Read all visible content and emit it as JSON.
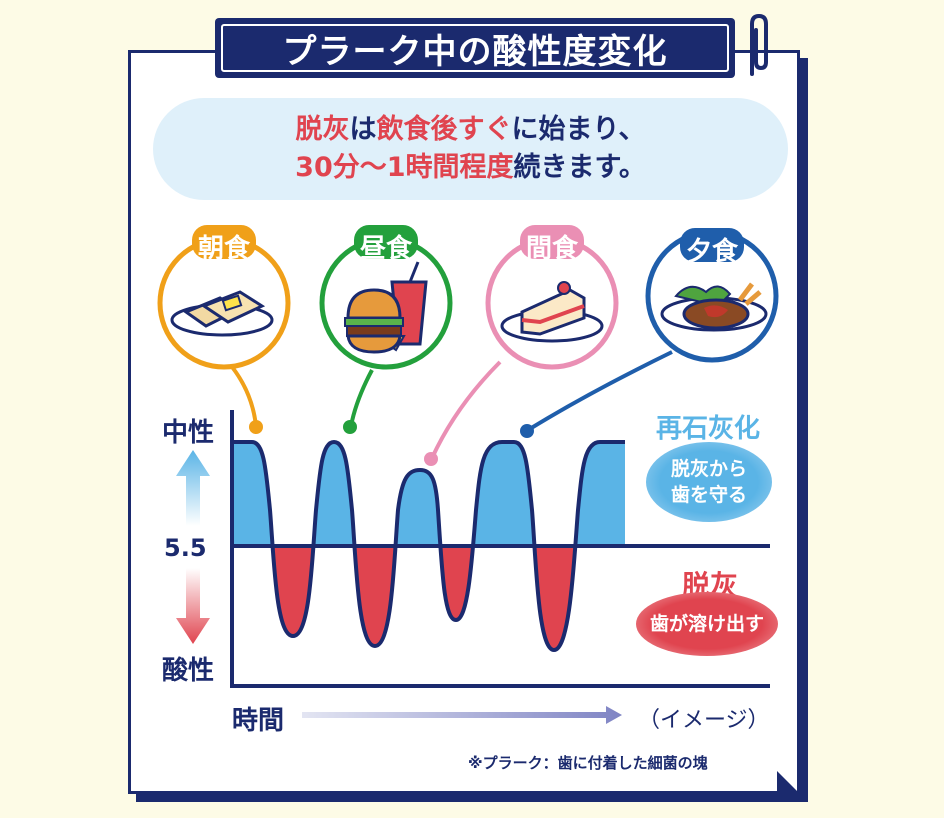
{
  "title": "プラーク中の酸性度変化",
  "banner": {
    "line1": [
      {
        "text": "脱灰",
        "highlight": true
      },
      {
        "text": "は",
        "highlight": false
      },
      {
        "text": "飲食後すぐ",
        "highlight": true
      },
      {
        "text": "に始まり、",
        "highlight": false
      }
    ],
    "line2": [
      {
        "text": "30分〜1時間程度",
        "highlight": true
      },
      {
        "text": "続きます。",
        "highlight": false
      }
    ]
  },
  "meals": [
    {
      "label": "朝食",
      "color": "#f0a019",
      "icon": "toast-icon"
    },
    {
      "label": "昼食",
      "color": "#23a03c",
      "icon": "burger-drink-icon"
    },
    {
      "label": "間食",
      "color": "#ea8fb4",
      "icon": "cake-icon"
    },
    {
      "label": "夕食",
      "color": "#1f5eab",
      "icon": "hamburg-steak-icon"
    }
  ],
  "y_axis": {
    "top": "中性",
    "mid": "5.5",
    "bottom": "酸性"
  },
  "x_axis": {
    "label": "時間",
    "note": "（イメージ）"
  },
  "remineralization": {
    "title": "再石灰化",
    "line1": "脱灰から",
    "line2": "歯を守る",
    "color": "#5ab4e6"
  },
  "demineralization": {
    "title": "脱灰",
    "text": "歯が溶け出す",
    "color": "#e0444f"
  },
  "footnote": "※プラーク：歯に付着した細菌の塊",
  "colors": {
    "navy": "#1b2a6e",
    "neutral_fill": "#5ab4e6",
    "acid_fill": "#e0444f"
  }
}
